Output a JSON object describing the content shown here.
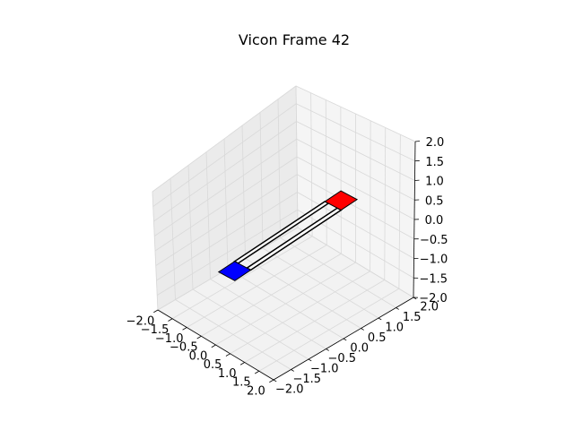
{
  "chart_data": {
    "type": "3d-wireframe",
    "title": "Vicon Frame 42",
    "xlabel": "",
    "ylabel": "",
    "zlabel": "",
    "grid": true,
    "xlim": [
      -2.0,
      2.0
    ],
    "ylim": [
      -2.0,
      2.0
    ],
    "zlim": [
      -2.0,
      2.0
    ],
    "x_ticks": [
      "−2.0",
      "−1.5",
      "−1.0",
      "−0.5",
      "0.0",
      "0.5",
      "1.0",
      "1.5",
      "2.0"
    ],
    "y_ticks": [
      "−2.0",
      "−1.5",
      "−1.0",
      "−0.5",
      "0.0",
      "0.5",
      "1.0",
      "1.5",
      "2.0"
    ],
    "z_ticks": [
      "−2.0",
      "−1.5",
      "−1.0",
      "−0.5",
      "0.0",
      "0.5",
      "1.0",
      "1.5",
      "2.0"
    ],
    "objects": [
      {
        "kind": "plate",
        "color": "#ff0000",
        "corners": [
          [
            -0.2,
            1.3,
            0.0
          ],
          [
            0.35,
            1.3,
            0.0
          ],
          [
            0.35,
            1.75,
            0.0
          ],
          [
            -0.2,
            1.75,
            0.0
          ]
        ]
      },
      {
        "kind": "plate",
        "color": "#0000ff",
        "corners": [
          [
            -0.2,
            -1.7,
            0.0
          ],
          [
            0.35,
            -1.7,
            0.0
          ],
          [
            0.35,
            -1.25,
            0.0
          ],
          [
            -0.2,
            -1.25,
            0.0
          ]
        ]
      },
      {
        "kind": "bar",
        "color": "#000000",
        "corners": [
          [
            -0.2,
            -1.25,
            0.0
          ],
          [
            -0.08,
            -1.25,
            0.0
          ],
          [
            -0.08,
            1.3,
            0.0
          ],
          [
            -0.2,
            1.3,
            0.0
          ]
        ]
      },
      {
        "kind": "bar",
        "color": "#000000",
        "corners": [
          [
            0.22,
            -1.25,
            0.0
          ],
          [
            0.35,
            -1.25,
            0.0
          ],
          [
            0.35,
            1.3,
            0.0
          ],
          [
            0.22,
            1.3,
            0.0
          ]
        ]
      }
    ]
  }
}
